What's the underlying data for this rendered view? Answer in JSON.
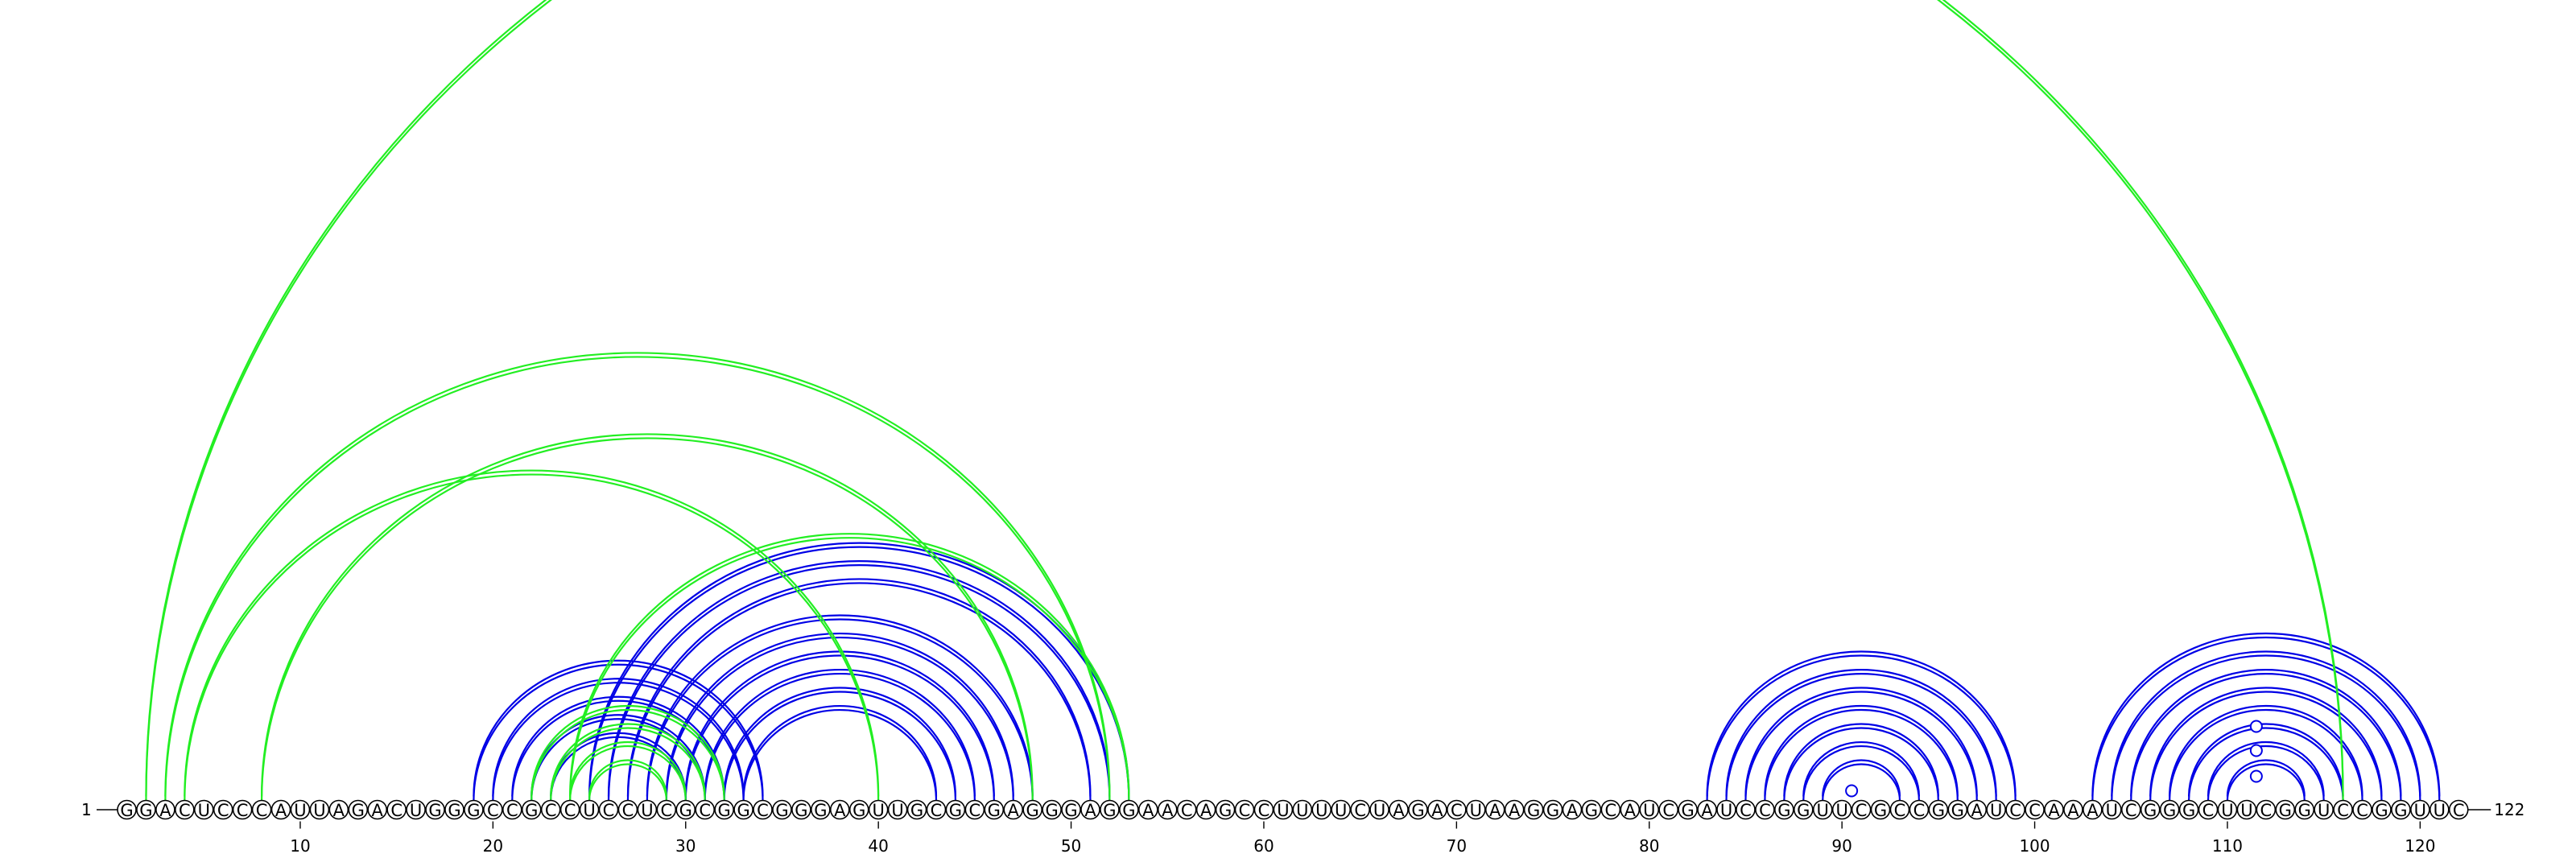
{
  "sequence": "GGACUCCCAUUAGACUGGGCCGCCUCCUCGCGGCGGGAGUUGCGCGAGGGAGGAACAGCCUUUUCUAGACUAAGGAGCAUCGAUCCGGUUCGCCGGAUCCAAAUCGGGCUUCGGUCCGGUUC",
  "start_label": "1",
  "end_label": "122",
  "tick_labels": [
    "10",
    "20",
    "30",
    "40",
    "50",
    "60",
    "70",
    "80",
    "90",
    "100",
    "110",
    "120"
  ],
  "colors": {
    "blue": "#0000e6",
    "green": "#22ee22"
  },
  "blue_pairs": [
    [
      19,
      34
    ],
    [
      20,
      33
    ],
    [
      21,
      32
    ],
    [
      22,
      31
    ],
    [
      23,
      30
    ],
    [
      25,
      53
    ],
    [
      26,
      52
    ],
    [
      27,
      51
    ],
    [
      28,
      48
    ],
    [
      29,
      47
    ],
    [
      30,
      46
    ],
    [
      31,
      45
    ],
    [
      32,
      44
    ],
    [
      33,
      43
    ],
    [
      83,
      99
    ],
    [
      84,
      98
    ],
    [
      85,
      97
    ],
    [
      86,
      96
    ],
    [
      87,
      95
    ],
    [
      88,
      94
    ],
    [
      89,
      93
    ],
    [
      103,
      121
    ],
    [
      104,
      120
    ],
    [
      105,
      119
    ],
    [
      106,
      118
    ],
    [
      107,
      117
    ],
    [
      108,
      116
    ],
    [
      109,
      115
    ],
    [
      110,
      114
    ]
  ],
  "green_pairs": [
    [
      2,
      116
    ],
    [
      3,
      52
    ],
    [
      4,
      40
    ],
    [
      8,
      48
    ],
    [
      22,
      32
    ],
    [
      23,
      31
    ],
    [
      24,
      30
    ],
    [
      25,
      29
    ],
    [
      24,
      53
    ]
  ],
  "bulges": [
    {
      "pos": 90.5,
      "height": 12
    },
    {
      "pos": 111.5,
      "height": 30
    },
    {
      "pos": 111.5,
      "height": 62
    },
    {
      "pos": 111.5,
      "height": 92
    }
  ]
}
